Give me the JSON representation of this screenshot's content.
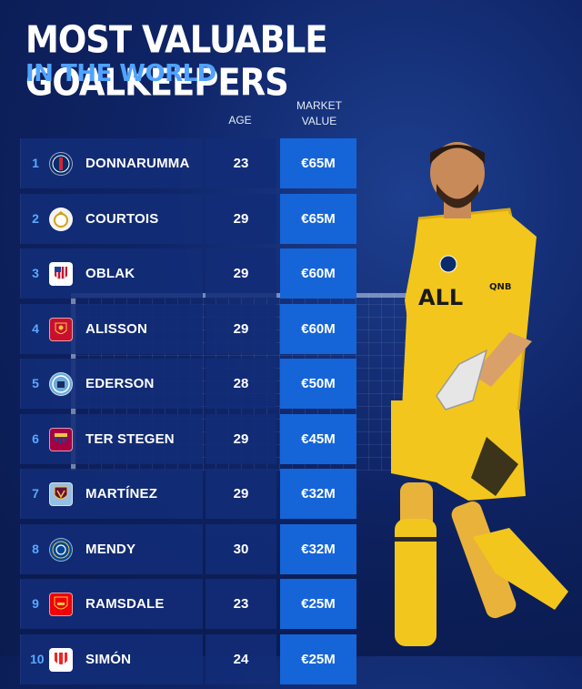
{
  "title": "MOST VALUABLE GOALKEEPERS",
  "subtitle": "IN THE WORLD",
  "headers": {
    "age": "AGE",
    "market_value_line1": "MARKET",
    "market_value_line2": "VALUE"
  },
  "colors": {
    "accent": "#1565d8",
    "rank": "#5aa8ff",
    "subtitle": "#4fa3ff",
    "jersey": "#f3c61d"
  },
  "jersey_sponsor": "QNB",
  "rows": [
    {
      "rank": "1",
      "name": "DONNARUMMA",
      "age": "23",
      "value": "€65M",
      "club_icon": "psg-crest-icon"
    },
    {
      "rank": "2",
      "name": "COURTOIS",
      "age": "29",
      "value": "€65M",
      "club_icon": "real-madrid-crest-icon"
    },
    {
      "rank": "3",
      "name": "OBLAK",
      "age": "29",
      "value": "€60M",
      "club_icon": "atletico-crest-icon"
    },
    {
      "rank": "4",
      "name": "ALISSON",
      "age": "29",
      "value": "€60M",
      "club_icon": "liverpool-crest-icon"
    },
    {
      "rank": "5",
      "name": "EDERSON",
      "age": "28",
      "value": "€50M",
      "club_icon": "man-city-crest-icon"
    },
    {
      "rank": "6",
      "name": "TER STEGEN",
      "age": "29",
      "value": "€45M",
      "club_icon": "barcelona-crest-icon"
    },
    {
      "rank": "7",
      "name": "MARTÍNEZ",
      "age": "29",
      "value": "€32M",
      "club_icon": "aston-villa-crest-icon"
    },
    {
      "rank": "8",
      "name": "MENDY",
      "age": "30",
      "value": "€32M",
      "club_icon": "chelsea-crest-icon"
    },
    {
      "rank": "9",
      "name": "RAMSDALE",
      "age": "23",
      "value": "€25M",
      "club_icon": "arsenal-crest-icon"
    },
    {
      "rank": "10",
      "name": "SIMÓN",
      "age": "24",
      "value": "€25M",
      "club_icon": "athletic-bilbao-crest-icon"
    }
  ]
}
